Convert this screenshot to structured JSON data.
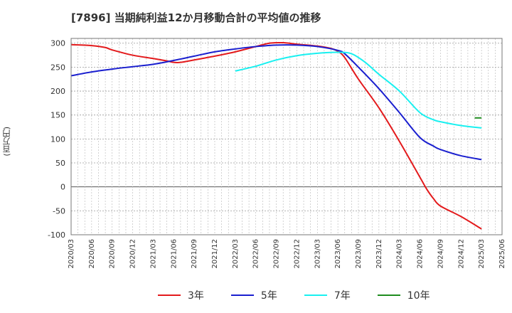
{
  "title": "[7896]  当期純利益12か月移動合計の平均値の推移",
  "y_unit_label": "(百万円)",
  "chart_data": {
    "type": "line",
    "title": "[7896]  当期純利益12か月移動合計の平均値の推移",
    "ylabel": "(百万円)",
    "xlabel": "",
    "ylim": [
      -100,
      310
    ],
    "yticks": [
      300,
      250,
      200,
      150,
      100,
      50,
      0,
      -50,
      -100
    ],
    "x_tick_labels": [
      "2020/03",
      "2020/06",
      "2020/09",
      "2020/12",
      "2021/03",
      "2021/06",
      "2021/09",
      "2021/12",
      "2022/03",
      "2022/06",
      "2022/09",
      "2022/12",
      "2023/03",
      "2023/06",
      "2023/09",
      "2023/12",
      "2024/03",
      "2024/06",
      "2024/09",
      "2024/12",
      "2025/03",
      "2025/06"
    ],
    "grid": true,
    "legend_position": "bottom",
    "series": [
      {
        "name": "3年",
        "color": "#e31a1c",
        "points": [
          [
            "2020/03",
            297
          ],
          [
            "2020/06",
            295
          ],
          [
            "2020/08",
            291
          ],
          [
            "2020/09",
            286
          ],
          [
            "2020/12",
            275
          ],
          [
            "2021/03",
            268
          ],
          [
            "2021/05",
            263
          ],
          [
            "2021/06",
            260
          ],
          [
            "2021/07",
            260
          ],
          [
            "2021/09",
            265
          ],
          [
            "2021/12",
            273
          ],
          [
            "2022/03",
            282
          ],
          [
            "2022/06",
            293
          ],
          [
            "2022/08",
            300
          ],
          [
            "2022/10",
            301
          ],
          [
            "2022/12",
            298
          ],
          [
            "2023/03",
            294
          ],
          [
            "2023/05",
            289
          ],
          [
            "2023/06",
            283
          ],
          [
            "2023/07",
            270
          ],
          [
            "2023/09",
            225
          ],
          [
            "2023/12",
            165
          ],
          [
            "2024/03",
            95
          ],
          [
            "2024/06",
            20
          ],
          [
            "2024/07",
            -5
          ],
          [
            "2024/08",
            -25
          ],
          [
            "2024/09",
            -40
          ],
          [
            "2024/12",
            -62
          ],
          [
            "2025/03",
            -88
          ]
        ]
      },
      {
        "name": "5年",
        "color": "#1a1fcf",
        "points": [
          [
            "2020/03",
            232
          ],
          [
            "2020/06",
            240
          ],
          [
            "2020/09",
            246
          ],
          [
            "2020/12",
            251
          ],
          [
            "2021/03",
            256
          ],
          [
            "2021/06",
            264
          ],
          [
            "2021/09",
            273
          ],
          [
            "2021/12",
            282
          ],
          [
            "2022/03",
            288
          ],
          [
            "2022/06",
            293
          ],
          [
            "2022/09",
            296
          ],
          [
            "2022/12",
            296
          ],
          [
            "2023/03",
            293
          ],
          [
            "2023/06",
            285
          ],
          [
            "2023/07",
            278
          ],
          [
            "2023/09",
            250
          ],
          [
            "2023/12",
            205
          ],
          [
            "2024/03",
            155
          ],
          [
            "2024/06",
            103
          ],
          [
            "2024/08",
            85
          ],
          [
            "2024/09",
            78
          ],
          [
            "2024/12",
            65
          ],
          [
            "2025/03",
            57
          ]
        ]
      },
      {
        "name": "7年",
        "color": "#19f0f0",
        "points": [
          [
            "2022/03",
            242
          ],
          [
            "2022/06",
            252
          ],
          [
            "2022/09",
            265
          ],
          [
            "2022/12",
            274
          ],
          [
            "2023/03",
            279
          ],
          [
            "2023/06",
            281
          ],
          [
            "2023/08",
            278
          ],
          [
            "2023/10",
            260
          ],
          [
            "2023/12",
            235
          ],
          [
            "2024/03",
            200
          ],
          [
            "2024/06",
            155
          ],
          [
            "2024/08",
            140
          ],
          [
            "2024/09",
            136
          ],
          [
            "2024/12",
            128
          ],
          [
            "2025/03",
            123
          ]
        ]
      },
      {
        "name": "10年",
        "color": "#1f8c1f",
        "points": [
          [
            "2025/02",
            144
          ],
          [
            "2025/03",
            144
          ]
        ]
      }
    ]
  }
}
